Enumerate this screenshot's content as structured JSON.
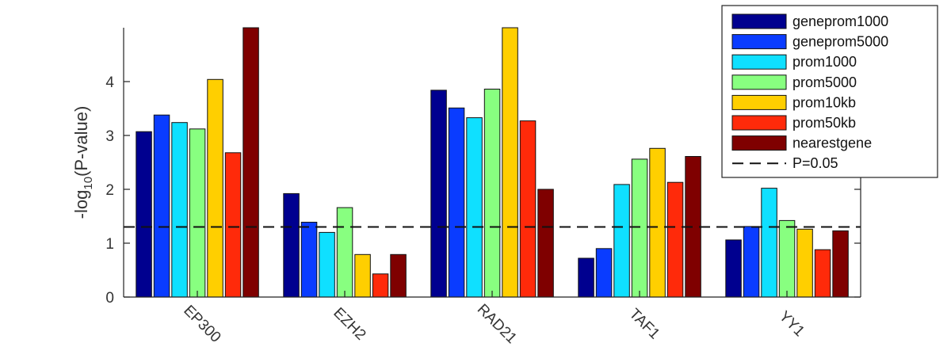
{
  "chart_data": {
    "type": "bar",
    "categories": [
      "EP300",
      "EZH2",
      "RAD21",
      "TAF1",
      "YY1"
    ],
    "series": [
      {
        "name": "geneprom1000",
        "color": "#00008f",
        "values": [
          3.07,
          1.92,
          3.84,
          0.72,
          1.06
        ]
      },
      {
        "name": "geneprom5000",
        "color": "#0a3cff",
        "values": [
          3.38,
          1.39,
          3.51,
          0.9,
          1.31
        ]
      },
      {
        "name": "prom1000",
        "color": "#0fe0ff",
        "values": [
          3.24,
          1.2,
          3.33,
          2.09,
          2.02
        ]
      },
      {
        "name": "prom5000",
        "color": "#88ff80",
        "values": [
          3.12,
          1.66,
          3.86,
          2.56,
          1.42
        ]
      },
      {
        "name": "prom10kb",
        "color": "#ffcf00",
        "values": [
          4.04,
          0.79,
          5.0,
          2.76,
          1.26
        ]
      },
      {
        "name": "prom50kb",
        "color": "#ff2a0a",
        "values": [
          2.68,
          0.43,
          3.27,
          2.13,
          0.88
        ]
      },
      {
        "name": "nearestgene",
        "color": "#7f0000",
        "values": [
          5.0,
          0.79,
          2.0,
          2.61,
          1.23
        ]
      }
    ],
    "reference_line": {
      "label": "P=0.05",
      "value": 1.301
    },
    "ylabel_main": "-log",
    "ylabel_sub": "10",
    "ylabel_rest": "(P-value)",
    "ylim": [
      0,
      5
    ],
    "yticks": [
      "0",
      "1",
      "2",
      "3",
      "4"
    ],
    "legend_position": "top-right",
    "grid": false
  }
}
